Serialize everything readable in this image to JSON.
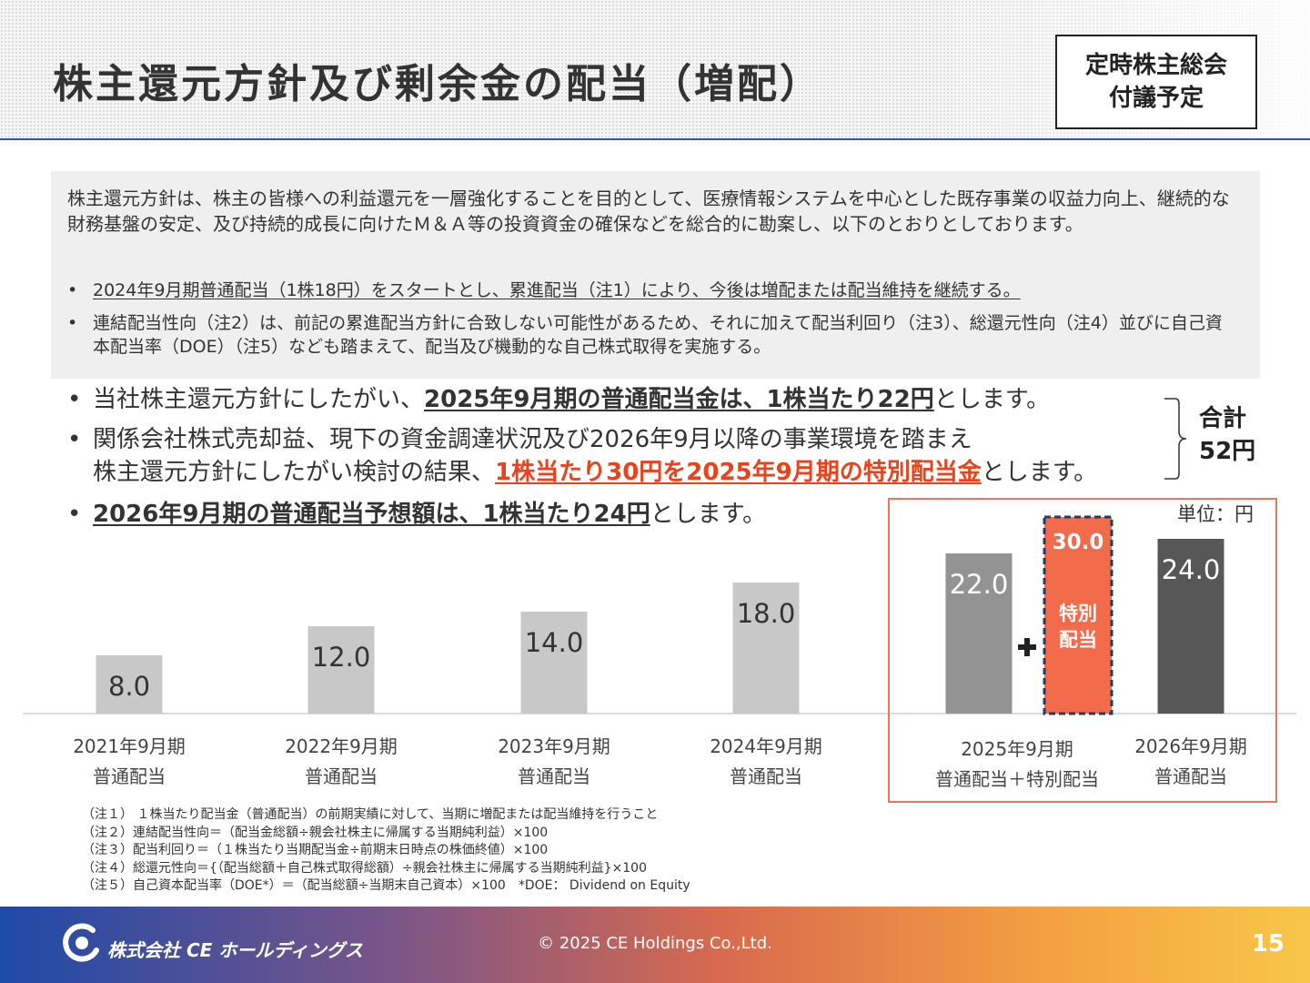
{
  "header": {
    "title": "株主還元方針及び剰余金の配当（増配）",
    "badge_line1": "定時株主総会",
    "badge_line2": "付議予定"
  },
  "policy": {
    "intro": "株主還元方針は、株主の皆様への利益還元を一層強化することを目的として、医療情報システムを中心とした既存事業の収益力向上、継続的な財務基盤の安定、及び持続的成長に向けたＭ＆Ａ等の投資資金の確保などを総合的に勘案し、以下のとおりとしております。",
    "bullet1": "2024年9月期普通配当（1株18円）をスタートとし、累進配当（注1）により、今後は増配または配当維持を継続する。",
    "bullet2": "連結配当性向（注2）は、前記の累進配当方針に合致しない可能性があるため、それに加えて配当利回り（注3）、総還元性向（注4）並びに自己資本配当率（DOE）（注5）なども踏まえて、配当及び機動的な自己株式取得を実施する。"
  },
  "main_points": {
    "b1_pre": "当社株主還元方針にしたがい、",
    "b1_bold": "2025年9月期の普通配当金は、1株当たり22円",
    "b1_post": "とします。",
    "b2_line1": "関係会社株式売却益、現下の資金調達状況及び2026年9月以降の事業環境を踏まえ",
    "b2_pre": "株主還元方針にしたがい検討の結果、",
    "b2_red": "1株当たり30円を2025年9月期の特別配当金",
    "b2_post": "とします。",
    "b3_bold": "2026年9月期の普通配当予想額は、1株当たり24円",
    "b3_post": "とします。",
    "total_label": "合計",
    "total_value": "52円"
  },
  "chart_data": {
    "type": "bar",
    "unit_label": "単位：円",
    "categories": [
      {
        "line1": "2021年9月期",
        "line2": "普通配当"
      },
      {
        "line1": "2022年9月期",
        "line2": "普通配当"
      },
      {
        "line1": "2023年9月期",
        "line2": "普通配当"
      },
      {
        "line1": "2024年9月期",
        "line2": "普通配当"
      },
      {
        "line1": "2025年9月期",
        "line2": "普通配当＋特別配当"
      },
      {
        "line1": "2026年9月期",
        "line2": "普通配当"
      }
    ],
    "series": [
      {
        "values": [
          8.0,
          12.0,
          14.0,
          18.0,
          22.0,
          24.0
        ]
      },
      {
        "name": "特別配当",
        "values": [
          null,
          null,
          null,
          null,
          30.0,
          null
        ]
      }
    ],
    "labels": [
      "8.0",
      "12.0",
      "14.0",
      "18.0",
      "22.0",
      "24.0"
    ],
    "special_label": "30.0",
    "special_text_line1": "特別",
    "special_text_line2": "配当",
    "colors": {
      "past": "#c8c8c8",
      "current": "#939393",
      "forecast": "#575757",
      "special": "#f26b4b",
      "highlight_box": "#f0765a",
      "label_dark": "#333333",
      "label_light": "#ffffff"
    }
  },
  "notes": [
    "（注１） １株当たり配当金（普通配当）の前期実績に対して、当期に増配または配当維持を行うこと",
    "（注２）連結配当性向＝（配当金総額÷親会社株主に帰属する当期純利益）×100",
    "（注３）配当利回り＝（１株当たり当期配当金÷前期末日時点の株価終値）×100",
    "（注４）総還元性向＝{（配当総額＋自己株式取得総額）÷親会社株主に帰属する当期純利益}×100",
    "（注５）自己資本配当率（DOE*）＝（配当総額÷当期末自己資本）×100　*DOE： Dividend on Equity"
  ],
  "footer": {
    "company": "株式会社 CE ホールディングス",
    "copyright": "© 2025 CE Holdings Co.,Ltd.",
    "page_number": "15"
  }
}
